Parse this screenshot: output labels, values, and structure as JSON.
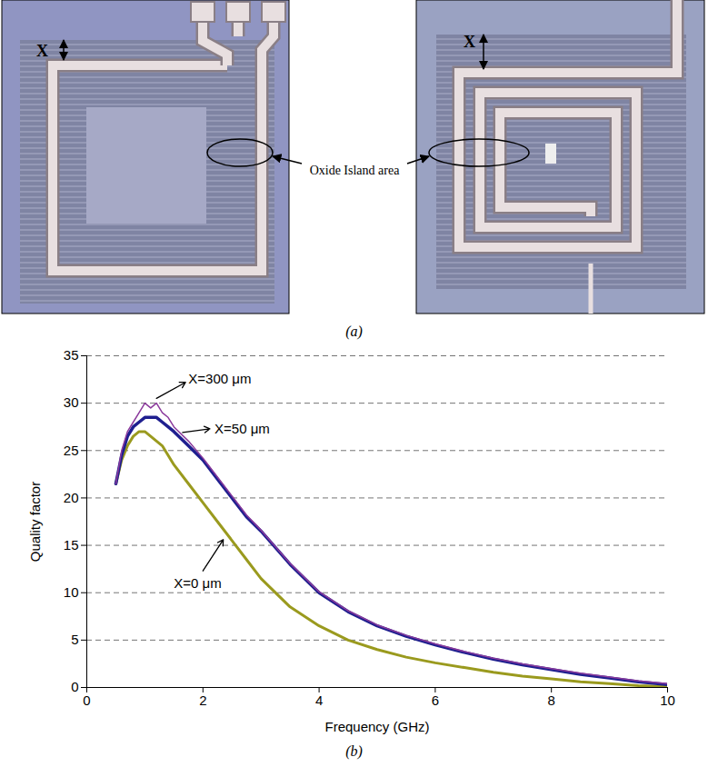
{
  "figure_a": {
    "dimension_labels": [
      "X",
      "X"
    ],
    "annotation": "Oxide Island area",
    "caption": "(a)"
  },
  "chart_data": {
    "type": "line",
    "caption": "(b)",
    "x_label": "Frequency (GHz)",
    "y_label": "Quality factor",
    "x": [
      0.5,
      0.6,
      0.7,
      0.8,
      0.9,
      1.0,
      1.1,
      1.2,
      1.3,
      1.4,
      1.5,
      1.75,
      2,
      2.25,
      2.5,
      2.75,
      3,
      3.5,
      4,
      4.5,
      5,
      5.5,
      6,
      6.5,
      7,
      7.5,
      8,
      8.5,
      9,
      9.5,
      10
    ],
    "series": [
      {
        "name": "X=0 μm",
        "color": "#9a9a1e",
        "values": [
          21.5,
          24,
          25.5,
          26.5,
          27,
          27,
          26.5,
          26,
          25.5,
          24.5,
          23.5,
          21.5,
          19.5,
          17.5,
          15.5,
          13.5,
          11.5,
          8.5,
          6.5,
          5,
          4,
          3.2,
          2.6,
          2.1,
          1.6,
          1.2,
          0.9,
          0.6,
          0.4,
          0.2,
          0.1
        ],
        "label_at": [
          1.5,
          11
        ],
        "arrow_from": [
          2.0,
          12.3
        ],
        "arrow_to": [
          2.35,
          15.6
        ]
      },
      {
        "name": "X=50 μm",
        "color": "#1f1f8f",
        "values": [
          21.5,
          24.5,
          26.5,
          27.5,
          28,
          28.5,
          28.5,
          28.5,
          28,
          27.5,
          27,
          25.5,
          24,
          22,
          20,
          18,
          16.5,
          13,
          10,
          8,
          6.5,
          5.4,
          4.5,
          3.7,
          3,
          2.4,
          1.9,
          1.4,
          1,
          0.6,
          0.3
        ],
        "label_at": [
          2.2,
          27.3
        ],
        "arrow_from": [
          1.65,
          26.9
        ],
        "arrow_to": [
          2.12,
          27.3
        ]
      },
      {
        "name": "X=300 μm",
        "color": "#8b3a9c",
        "values": [
          21.5,
          25,
          27,
          28,
          29,
          30,
          29.5,
          30,
          29,
          28.5,
          27.5,
          26,
          24.2,
          22.2,
          20.2,
          18.2,
          16.6,
          13.1,
          10.1,
          8.1,
          6.6,
          5.5,
          4.6,
          3.8,
          3.1,
          2.5,
          2,
          1.5,
          1.1,
          0.7,
          0.4
        ],
        "label_at": [
          1.75,
          32.5
        ],
        "arrow_from": [
          1.2,
          30.5
        ],
        "arrow_to": [
          1.7,
          32.2
        ]
      }
    ],
    "xlim": [
      0,
      10
    ],
    "xticks": [
      0,
      2,
      4,
      6,
      8,
      10
    ],
    "ylim": [
      0,
      35
    ],
    "yticks": [
      0,
      5,
      10,
      15,
      20,
      25,
      30,
      35
    ],
    "grid": true
  }
}
